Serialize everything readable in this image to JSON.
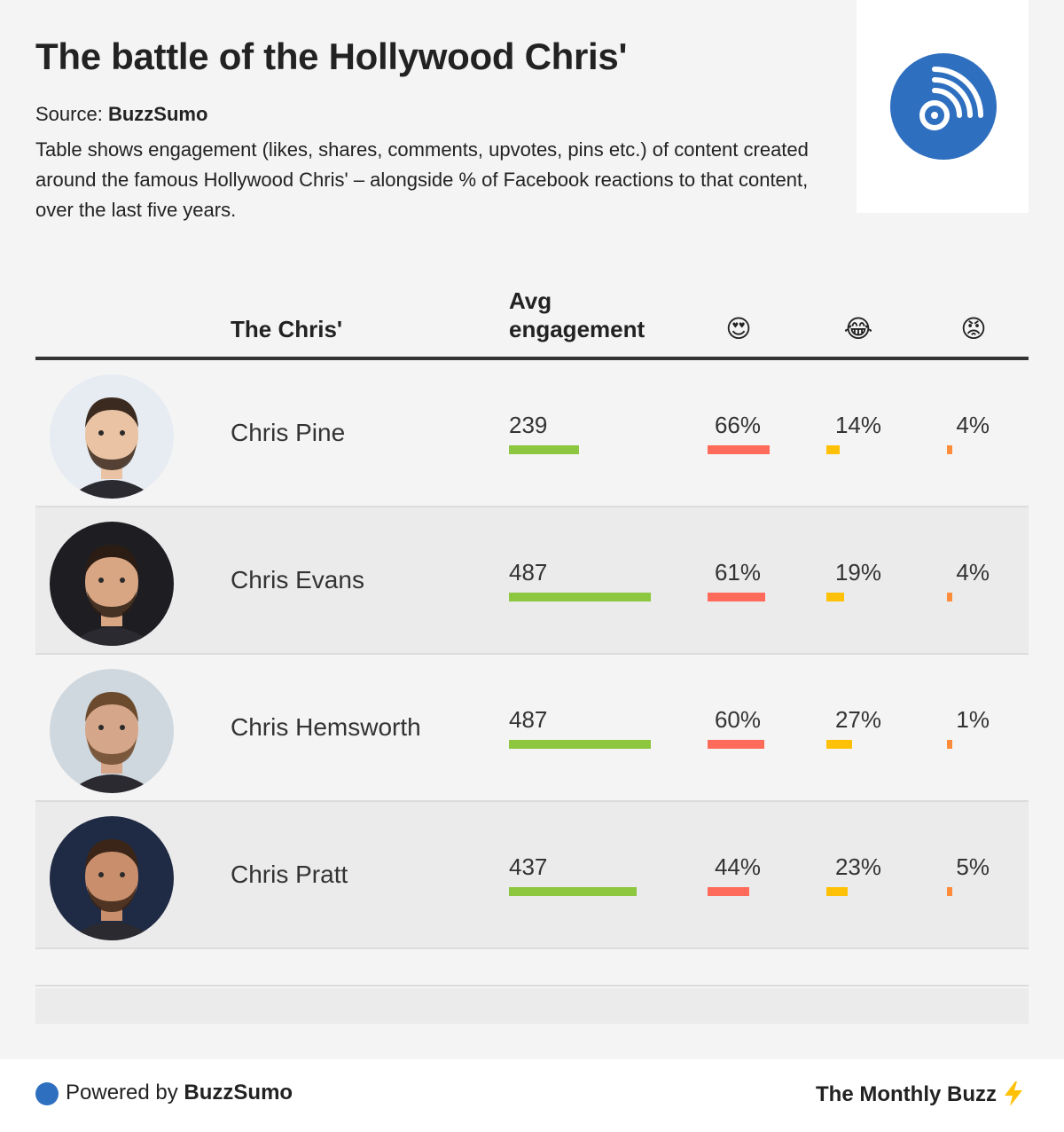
{
  "title": "The battle of the Hollywood Chris'",
  "source_label": "Source:",
  "source_name": "BuzzSumo",
  "description": "Table shows engagement (likes, shares, comments, upvotes, pins etc.) of content created around the famous Hollywood Chris' – alongside % of Facebook reactions to that content, over the last five years.",
  "logo_icon": "rss-broadcast-icon",
  "colors": {
    "engagement_bar": "#8dc63f",
    "love_bar": "#ff6b5b",
    "haha_bar": "#ffc107",
    "angry_bar": "#ff8c3a",
    "brand_blue": "#2f6fbf"
  },
  "chart_data": {
    "type": "table",
    "columns": [
      "The Chris'",
      "Avg engagement",
      "😍",
      "😂",
      "😡"
    ],
    "column_header_chris": "The Chris'",
    "column_header_engagement_line1": "Avg",
    "column_header_engagement_line2": "engagement",
    "reaction_icons": {
      "love": "😍",
      "haha": "😂",
      "angry": "😡"
    },
    "engagement_max": 487,
    "percent_scale_max": 66,
    "rows": [
      {
        "name": "Chris Pine",
        "engagement": 239,
        "love": 66,
        "haha": 14,
        "angry": 4,
        "love_label": "66%",
        "haha_label": "14%",
        "angry_label": "4%"
      },
      {
        "name": "Chris Evans",
        "engagement": 487,
        "love": 61,
        "haha": 19,
        "angry": 4,
        "love_label": "61%",
        "haha_label": "19%",
        "angry_label": "4%"
      },
      {
        "name": "Chris Hemsworth",
        "engagement": 487,
        "love": 60,
        "haha": 27,
        "angry": 1,
        "love_label": "60%",
        "haha_label": "27%",
        "angry_label": "1%"
      },
      {
        "name": "Chris Pratt",
        "engagement": 437,
        "love": 44,
        "haha": 23,
        "angry": 5,
        "love_label": "44%",
        "haha_label": "23%",
        "angry_label": "5%"
      }
    ]
  },
  "footer": {
    "powered_by": "Powered by",
    "powered_brand": "BuzzSumo",
    "newsletter": "The Monthly Buzz",
    "bolt_icon": "lightning-bolt-icon"
  }
}
